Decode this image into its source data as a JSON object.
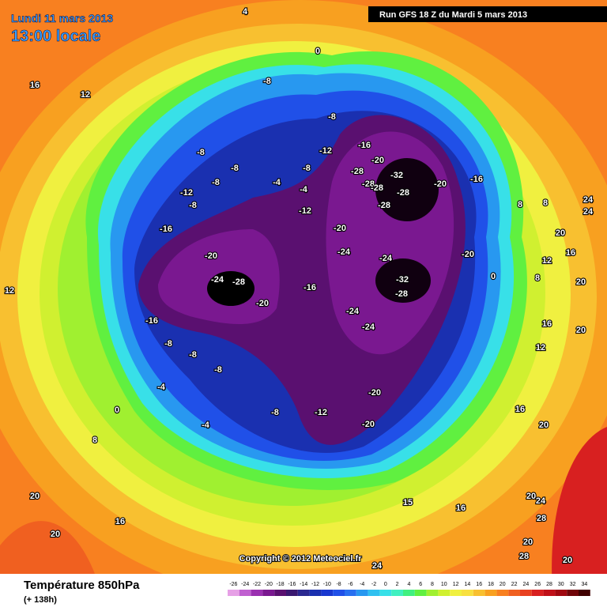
{
  "header": {
    "date": "Lundi 11 mars 2013",
    "time": "13:00 locale",
    "run": "Run GFS 18 Z du Mardi 5 mars 2013"
  },
  "copyright": "Copyright © 2012 Meteociel.fr",
  "footer": {
    "title": "Température 850hPa",
    "lead": "(+ 138h)"
  },
  "scale": {
    "ticks": [
      -26,
      -24,
      -22,
      -20,
      -18,
      -16,
      -14,
      -12,
      -10,
      -8,
      -6,
      -4,
      -2,
      0,
      2,
      4,
      6,
      8,
      10,
      12,
      14,
      16,
      18,
      20,
      22,
      24,
      26,
      28,
      30,
      32,
      34
    ],
    "colors": [
      "#e6a0e6",
      "#c060d0",
      "#9a30b0",
      "#7a1890",
      "#5a1070",
      "#3a1870",
      "#2a2890",
      "#1a30b0",
      "#1838d0",
      "#2050e8",
      "#2870f0",
      "#2898f0",
      "#30c0f0",
      "#38e0e8",
      "#40f0c0",
      "#40f080",
      "#60f040",
      "#a0f030",
      "#d0f030",
      "#f0f040",
      "#f8e040",
      "#f8c030",
      "#f8a020",
      "#f88020",
      "#f06020",
      "#e84020",
      "#d82020",
      "#c01018",
      "#a00810",
      "#700408",
      "#400000"
    ]
  },
  "contour_labels": [
    "4",
    "0",
    "16",
    "12",
    "-8",
    "-8",
    "-16",
    "-12",
    "-8",
    "-8",
    "-8",
    "-28",
    "-20",
    "-32",
    "-28",
    "-28",
    "-28",
    "-20",
    "-16",
    "-12",
    "-8",
    "-4",
    "-4",
    "-8",
    "-12",
    "-28",
    "8",
    "8",
    "24",
    "24",
    "-16",
    "-20",
    "20",
    "-20",
    "-24",
    "-24",
    "-20",
    "16",
    "12",
    "-24",
    "-28",
    "-16",
    "-32",
    "-28",
    "0",
    "8",
    "20",
    "12",
    "-20",
    "-24",
    "-16",
    "-24",
    "16",
    "20",
    "-8",
    "12",
    "-8",
    "-8",
    "-4",
    "-20",
    "16",
    "0",
    "-8",
    "-12",
    "-20",
    "-4",
    "8",
    "20",
    "20",
    "16",
    "20",
    "15",
    "16",
    "20",
    "24",
    "28",
    "20",
    "28",
    "24",
    "20"
  ]
}
